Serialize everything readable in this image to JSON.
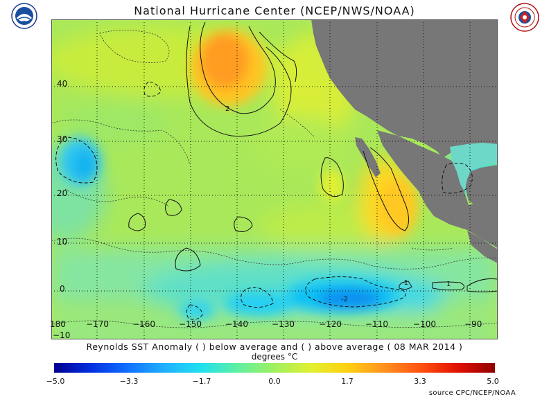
{
  "title": "National Hurricane Center (NCEP/NWS/NOAA)",
  "caption": "Reynolds SST Anomaly (  ) below average and (  ) above average ( 08 MAR 2014 )",
  "units": "degrees °C",
  "source": "source   CPC/NCEP/NOAA",
  "logos": {
    "left": "noaa-logo",
    "right": "nws-logo"
  },
  "map": {
    "lat_labels": [
      "40",
      "30",
      "20",
      "10",
      "0",
      "−10"
    ],
    "lon_labels": [
      "180",
      "−170",
      "−160",
      "−150",
      "−140",
      "−130",
      "−120",
      "−110",
      "−100",
      "−90"
    ],
    "contour_labels": [
      "2",
      "-2",
      "1",
      "-1"
    ],
    "land_color": "#777777"
  },
  "colorbar": {
    "ticks": [
      "−5.0",
      "−3.3",
      "−1.7",
      "0.0",
      "1.7",
      "3.3",
      "5.0"
    ],
    "colors": [
      "#000090",
      "#0030e0",
      "#1070ff",
      "#20b0ff",
      "#20e0f0",
      "#60f0a0",
      "#a0f060",
      "#e0f030",
      "#ffd010",
      "#ff9020",
      "#ff5010",
      "#e01000",
      "#900000"
    ]
  }
}
